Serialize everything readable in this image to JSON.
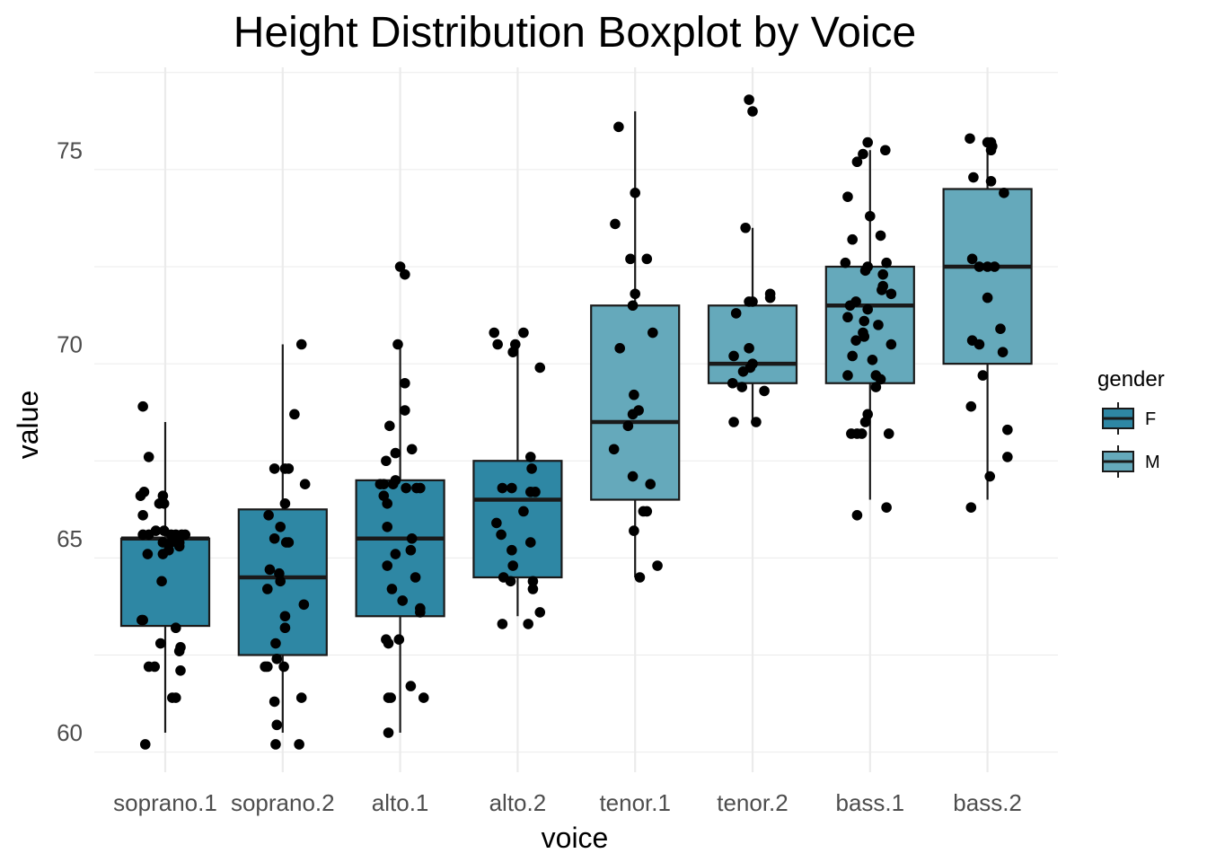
{
  "chart_data": {
    "type": "boxplot",
    "title": "Height Distribution Boxplot by Voice",
    "xlabel": "voice",
    "ylabel": "value",
    "ylim": [
      59,
      77
    ],
    "yticks": [
      60,
      65,
      70,
      75
    ],
    "grid": "on",
    "legend": {
      "title": "gender",
      "placement": "right",
      "entries": [
        {
          "label": "F",
          "color": "#2e87a4"
        },
        {
          "label": "M",
          "color": "#65a9bb"
        }
      ]
    },
    "colors": {
      "F": "#2e87a4",
      "M": "#65a9bb",
      "points": "#000000",
      "grid": "#ebebeb"
    },
    "categories": [
      "soprano.1",
      "soprano.2",
      "alto.1",
      "alto.2",
      "tenor.1",
      "tenor.2",
      "bass.1",
      "bass.2"
    ],
    "boxes": [
      {
        "category": "soprano.1",
        "gender": "F",
        "min": 60,
        "q1": 62.75,
        "median": 65,
        "q3": 65,
        "max": 68
      },
      {
        "category": "soprano.2",
        "gender": "F",
        "min": 60,
        "q1": 62,
        "median": 64,
        "q3": 65.75,
        "max": 70
      },
      {
        "category": "alto.1",
        "gender": "F",
        "min": 60,
        "q1": 63,
        "median": 65,
        "q3": 66.5,
        "max": 70
      },
      {
        "category": "alto.2",
        "gender": "F",
        "min": 63,
        "q1": 64,
        "median": 66,
        "q3": 67,
        "max": 70
      },
      {
        "category": "tenor.1",
        "gender": "M",
        "min": 64,
        "q1": 66,
        "median": 68,
        "q3": 71,
        "max": 76
      },
      {
        "category": "tenor.2",
        "gender": "M",
        "min": 68,
        "q1": 69,
        "median": 69.5,
        "q3": 71,
        "max": 73
      },
      {
        "category": "bass.1",
        "gender": "M",
        "min": 66,
        "q1": 69,
        "median": 71,
        "q3": 72,
        "max": 75
      },
      {
        "category": "bass.2",
        "gender": "M",
        "min": 66,
        "q1": 69.5,
        "median": 72,
        "q3": 74,
        "max": 75
      }
    ],
    "points": [
      {
        "category": "soprano.1",
        "values": [
          [
            -0.19,
            68.4
          ],
          [
            -0.14,
            67.1
          ],
          [
            -0.18,
            66.2
          ],
          [
            -0.21,
            66.1
          ],
          [
            -0.02,
            66.1
          ],
          [
            -0.01,
            65.9
          ],
          [
            -0.19,
            65.6
          ],
          [
            -0.05,
            65.9
          ],
          [
            -0.19,
            65.1
          ],
          [
            -0.14,
            65.1
          ],
          [
            -0.08,
            65.2
          ],
          [
            -0.01,
            65.2
          ],
          [
            0.05,
            65.1
          ],
          [
            0.09,
            65.1
          ],
          [
            0.14,
            65.1
          ],
          [
            0.17,
            65.1
          ],
          [
            0.12,
            64.9
          ],
          [
            0.05,
            64.9
          ],
          [
            -0.02,
            64.9
          ],
          [
            0.12,
            64.8
          ],
          [
            0.03,
            64.7
          ],
          [
            -0.15,
            64.6
          ],
          [
            -0.02,
            64.6
          ],
          [
            -0.03,
            63.9
          ],
          [
            0.09,
            62.7
          ],
          [
            -0.19,
            62.9
          ],
          [
            -0.2,
            62.9
          ],
          [
            -0.04,
            62.3
          ],
          [
            0.13,
            62.2
          ],
          [
            0.12,
            62.1
          ],
          [
            -0.14,
            61.7
          ],
          [
            -0.09,
            61.7
          ],
          [
            0.13,
            61.6
          ],
          [
            0.09,
            60.9
          ],
          [
            0.06,
            60.9
          ],
          [
            -0.17,
            59.7
          ]
        ]
      },
      {
        "category": "soprano.2",
        "values": [
          [
            0.16,
            70.0
          ],
          [
            0.1,
            68.2
          ],
          [
            -0.07,
            66.8
          ],
          [
            0.02,
            66.8
          ],
          [
            0.05,
            66.8
          ],
          [
            0.19,
            66.4
          ],
          [
            0.02,
            65.9
          ],
          [
            -0.12,
            65.6
          ],
          [
            -0.02,
            65.3
          ],
          [
            -0.07,
            65.0
          ],
          [
            0.03,
            64.9
          ],
          [
            0.05,
            64.9
          ],
          [
            -0.11,
            64.2
          ],
          [
            -0.03,
            64.1
          ],
          [
            -0.02,
            63.9
          ],
          [
            -0.13,
            63.7
          ],
          [
            0.18,
            63.3
          ],
          [
            0.02,
            63.0
          ],
          [
            0.02,
            62.7
          ],
          [
            -0.06,
            62.3
          ],
          [
            -0.13,
            61.7
          ],
          [
            -0.15,
            61.7
          ],
          [
            -0.05,
            61.9
          ],
          [
            0.01,
            61.7
          ],
          [
            -0.07,
            60.8
          ],
          [
            0.16,
            60.9
          ],
          [
            -0.05,
            60.2
          ],
          [
            -0.06,
            59.7
          ],
          [
            0.14,
            59.7
          ]
        ]
      },
      {
        "category": "alto.1",
        "values": [
          [
            0.0,
            72.0
          ],
          [
            0.04,
            71.8
          ],
          [
            -0.02,
            70.0
          ],
          [
            0.04,
            69.0
          ],
          [
            0.04,
            68.3
          ],
          [
            -0.09,
            67.9
          ],
          [
            -0.04,
            67.2
          ],
          [
            0.1,
            67.3
          ],
          [
            -0.12,
            67.0
          ],
          [
            -0.17,
            66.4
          ],
          [
            -0.14,
            66.4
          ],
          [
            -0.06,
            66.4
          ],
          [
            -0.04,
            66.5
          ],
          [
            -0.14,
            66.1
          ],
          [
            -0.11,
            65.9
          ],
          [
            0.05,
            66.3
          ],
          [
            0.17,
            66.3
          ],
          [
            0.14,
            66.3
          ],
          [
            -0.11,
            65.3
          ],
          [
            0.1,
            65.0
          ],
          [
            0.09,
            64.7
          ],
          [
            -0.04,
            64.6
          ],
          [
            -0.11,
            64.3
          ],
          [
            0.13,
            64.0
          ],
          [
            -0.07,
            63.7
          ],
          [
            0.02,
            63.4
          ],
          [
            0.17,
            63.2
          ],
          [
            0.17,
            63.1
          ],
          [
            -0.01,
            62.4
          ],
          [
            -0.12,
            62.4
          ],
          [
            -0.1,
            62.3
          ],
          [
            0.09,
            61.2
          ],
          [
            -0.08,
            60.9
          ],
          [
            -0.1,
            60.9
          ],
          [
            0.2,
            60.9
          ],
          [
            -0.1,
            60.0
          ]
        ]
      },
      {
        "category": "alto.2",
        "values": [
          [
            -0.2,
            70.3
          ],
          [
            -0.17,
            70.0
          ],
          [
            -0.04,
            69.8
          ],
          [
            -0.02,
            70.0
          ],
          [
            0.05,
            70.3
          ],
          [
            0.19,
            69.4
          ],
          [
            0.11,
            67.1
          ],
          [
            0.12,
            66.8
          ],
          [
            -0.13,
            66.3
          ],
          [
            -0.05,
            66.3
          ],
          [
            0.11,
            66.2
          ],
          [
            0.15,
            66.2
          ],
          [
            0.05,
            65.7
          ],
          [
            -0.18,
            65.4
          ],
          [
            -0.14,
            65.1
          ],
          [
            0.11,
            64.9
          ],
          [
            -0.05,
            64.7
          ],
          [
            -0.04,
            64.3
          ],
          [
            -0.12,
            64.0
          ],
          [
            -0.06,
            63.9
          ],
          [
            0.13,
            63.9
          ],
          [
            0.13,
            63.7
          ],
          [
            0.19,
            63.1
          ],
          [
            -0.13,
            62.8
          ],
          [
            0.09,
            62.8
          ]
        ]
      },
      {
        "category": "tenor.1",
        "values": [
          [
            -0.14,
            75.6
          ],
          [
            0.0,
            73.9
          ],
          [
            -0.17,
            73.1
          ],
          [
            -0.04,
            72.2
          ],
          [
            0.1,
            72.2
          ],
          [
            0.0,
            71.3
          ],
          [
            -0.02,
            71.0
          ],
          [
            0.15,
            70.3
          ],
          [
            -0.13,
            69.9
          ],
          [
            -0.01,
            68.7
          ],
          [
            -0.02,
            68.2
          ],
          [
            0.03,
            68.3
          ],
          [
            -0.06,
            67.9
          ],
          [
            -0.18,
            67.3
          ],
          [
            -0.02,
            66.6
          ],
          [
            0.13,
            66.4
          ],
          [
            0.07,
            65.7
          ],
          [
            0.1,
            65.7
          ],
          [
            -0.01,
            65.2
          ],
          [
            0.19,
            64.3
          ],
          [
            0.04,
            64.0
          ]
        ]
      },
      {
        "category": "tenor.2",
        "values": [
          [
            -0.03,
            76.3
          ],
          [
            0.0,
            76.0
          ],
          [
            -0.06,
            73.0
          ],
          [
            0.15,
            71.3
          ],
          [
            -0.03,
            71.1
          ],
          [
            0.0,
            71.1
          ],
          [
            0.15,
            71.2
          ],
          [
            -0.14,
            70.8
          ],
          [
            -0.03,
            69.9
          ],
          [
            -0.16,
            69.7
          ],
          [
            0.0,
            69.5
          ],
          [
            -0.08,
            69.3
          ],
          [
            -0.02,
            69.4
          ],
          [
            -0.17,
            69.0
          ],
          [
            -0.09,
            68.9
          ],
          [
            0.1,
            68.8
          ],
          [
            -0.16,
            68.0
          ],
          [
            0.03,
            68.0
          ]
        ]
      },
      {
        "category": "bass.1",
        "values": [
          [
            -0.02,
            75.2
          ],
          [
            0.13,
            75.0
          ],
          [
            -0.06,
            74.9
          ],
          [
            -0.11,
            74.7
          ],
          [
            -0.19,
            73.8
          ],
          [
            0.0,
            73.3
          ],
          [
            -0.15,
            72.7
          ],
          [
            0.09,
            72.8
          ],
          [
            -0.21,
            72.1
          ],
          [
            -0.04,
            71.9
          ],
          [
            0.14,
            72.1
          ],
          [
            -0.02,
            72.0
          ],
          [
            0.11,
            71.8
          ],
          [
            0.11,
            71.5
          ],
          [
            0.1,
            71.4
          ],
          [
            0.18,
            71.3
          ],
          [
            -0.12,
            71.1
          ],
          [
            -0.17,
            71.0
          ],
          [
            -0.02,
            70.9
          ],
          [
            -0.19,
            70.7
          ],
          [
            -0.05,
            70.6
          ],
          [
            0.07,
            70.5
          ],
          [
            0.18,
            70.0
          ],
          [
            -0.12,
            70.1
          ],
          [
            -0.05,
            70.2
          ],
          [
            -0.06,
            70.3
          ],
          [
            -0.15,
            69.7
          ],
          [
            0.02,
            69.6
          ],
          [
            -0.19,
            69.2
          ],
          [
            0.05,
            69.2
          ],
          [
            0.09,
            69.1
          ],
          [
            0.05,
            68.9
          ],
          [
            -0.02,
            68.2
          ],
          [
            -0.04,
            68.0
          ],
          [
            -0.07,
            67.7
          ],
          [
            -0.11,
            67.7
          ],
          [
            -0.16,
            67.7
          ],
          [
            0.16,
            67.7
          ],
          [
            0.14,
            65.8
          ],
          [
            -0.11,
            65.6
          ]
        ]
      },
      {
        "category": "bass.2",
        "values": [
          [
            -0.15,
            75.3
          ],
          [
            0.0,
            75.2
          ],
          [
            0.04,
            75.1
          ],
          [
            0.03,
            75.2
          ],
          [
            0.03,
            75.0
          ],
          [
            -0.12,
            74.3
          ],
          [
            0.03,
            74.2
          ],
          [
            0.14,
            73.9
          ],
          [
            -0.13,
            72.2
          ],
          [
            -0.07,
            72.0
          ],
          [
            0.0,
            72.0
          ],
          [
            0.06,
            72.0
          ],
          [
            0.0,
            71.2
          ],
          [
            0.11,
            70.4
          ],
          [
            -0.13,
            70.1
          ],
          [
            -0.07,
            70.0
          ],
          [
            0.13,
            69.8
          ],
          [
            -0.04,
            69.2
          ],
          [
            -0.14,
            68.4
          ],
          [
            0.17,
            67.8
          ],
          [
            0.17,
            67.1
          ],
          [
            0.02,
            66.6
          ],
          [
            -0.14,
            65.8
          ]
        ]
      }
    ]
  }
}
